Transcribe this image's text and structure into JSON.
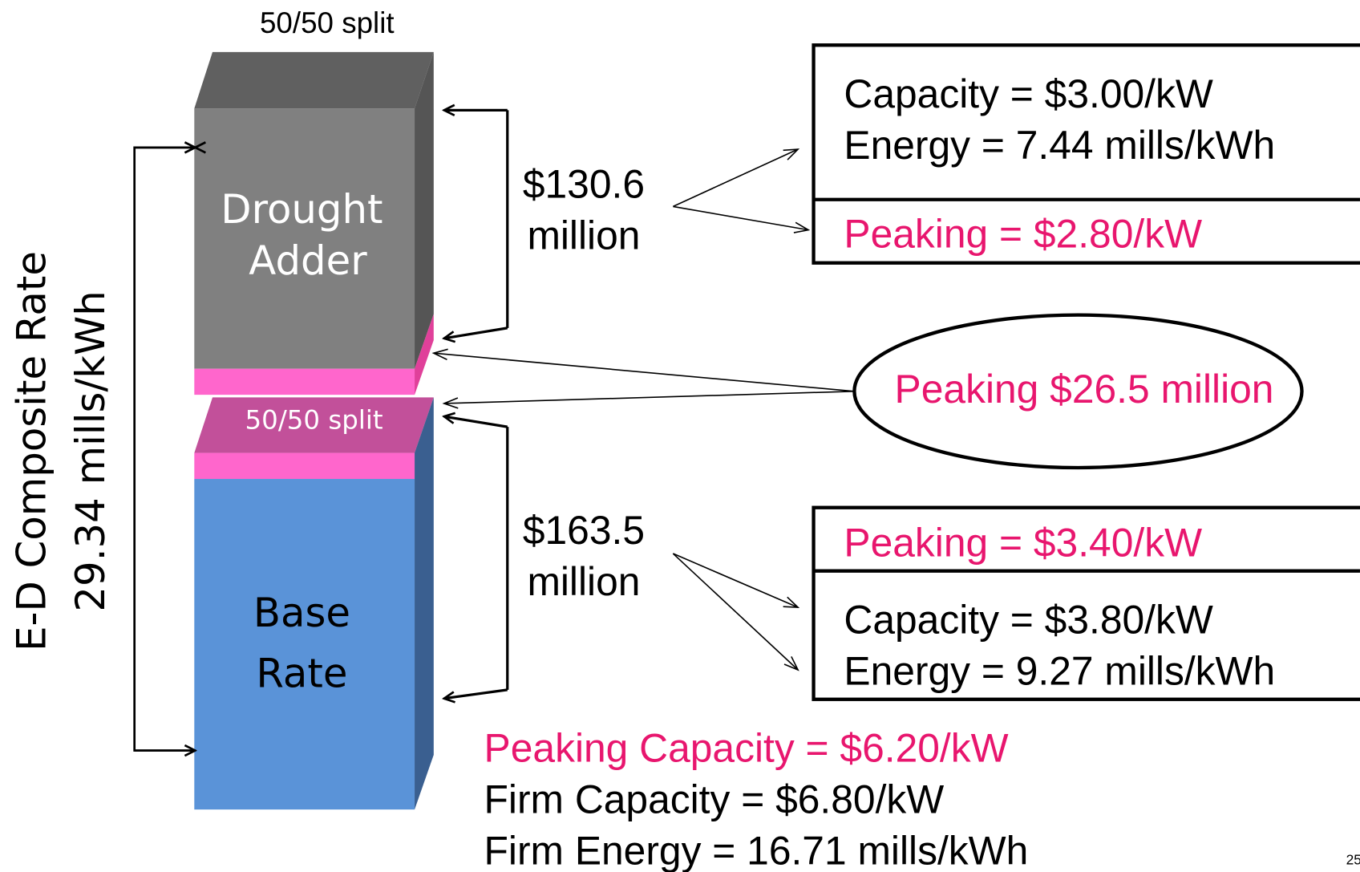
{
  "left_axis": {
    "line1": "E-D Composite Rate",
    "line2": "29.34 mills/kWh"
  },
  "top_block": {
    "header": "50/50 split",
    "label_lines": [
      "Drought",
      "Adder"
    ]
  },
  "bottom_block": {
    "header": "50/50 split",
    "label_lines": [
      "Base",
      "Rate"
    ]
  },
  "drought_amount": [
    "$130.6",
    "million"
  ],
  "base_amount": [
    "$163.5",
    "million"
  ],
  "drought_box": {
    "lines": [
      "Capacity = $3.00/kW",
      "Energy = 7.44 mills/kWh"
    ],
    "peaking": "Peaking = $2.80/kW"
  },
  "peaking_callout": "Peaking $26.5 million",
  "base_box": {
    "peaking": "Peaking = $3.40/kW",
    "lines": [
      "Capacity = $3.80/kW",
      "Energy = 9.27 mills/kWh"
    ]
  },
  "totals": [
    "Peaking Capacity = $6.20/kW",
    "Firm Capacity = $6.80/kW",
    "Firm Energy = 16.71 mills/kWh"
  ],
  "page_number": "25"
}
